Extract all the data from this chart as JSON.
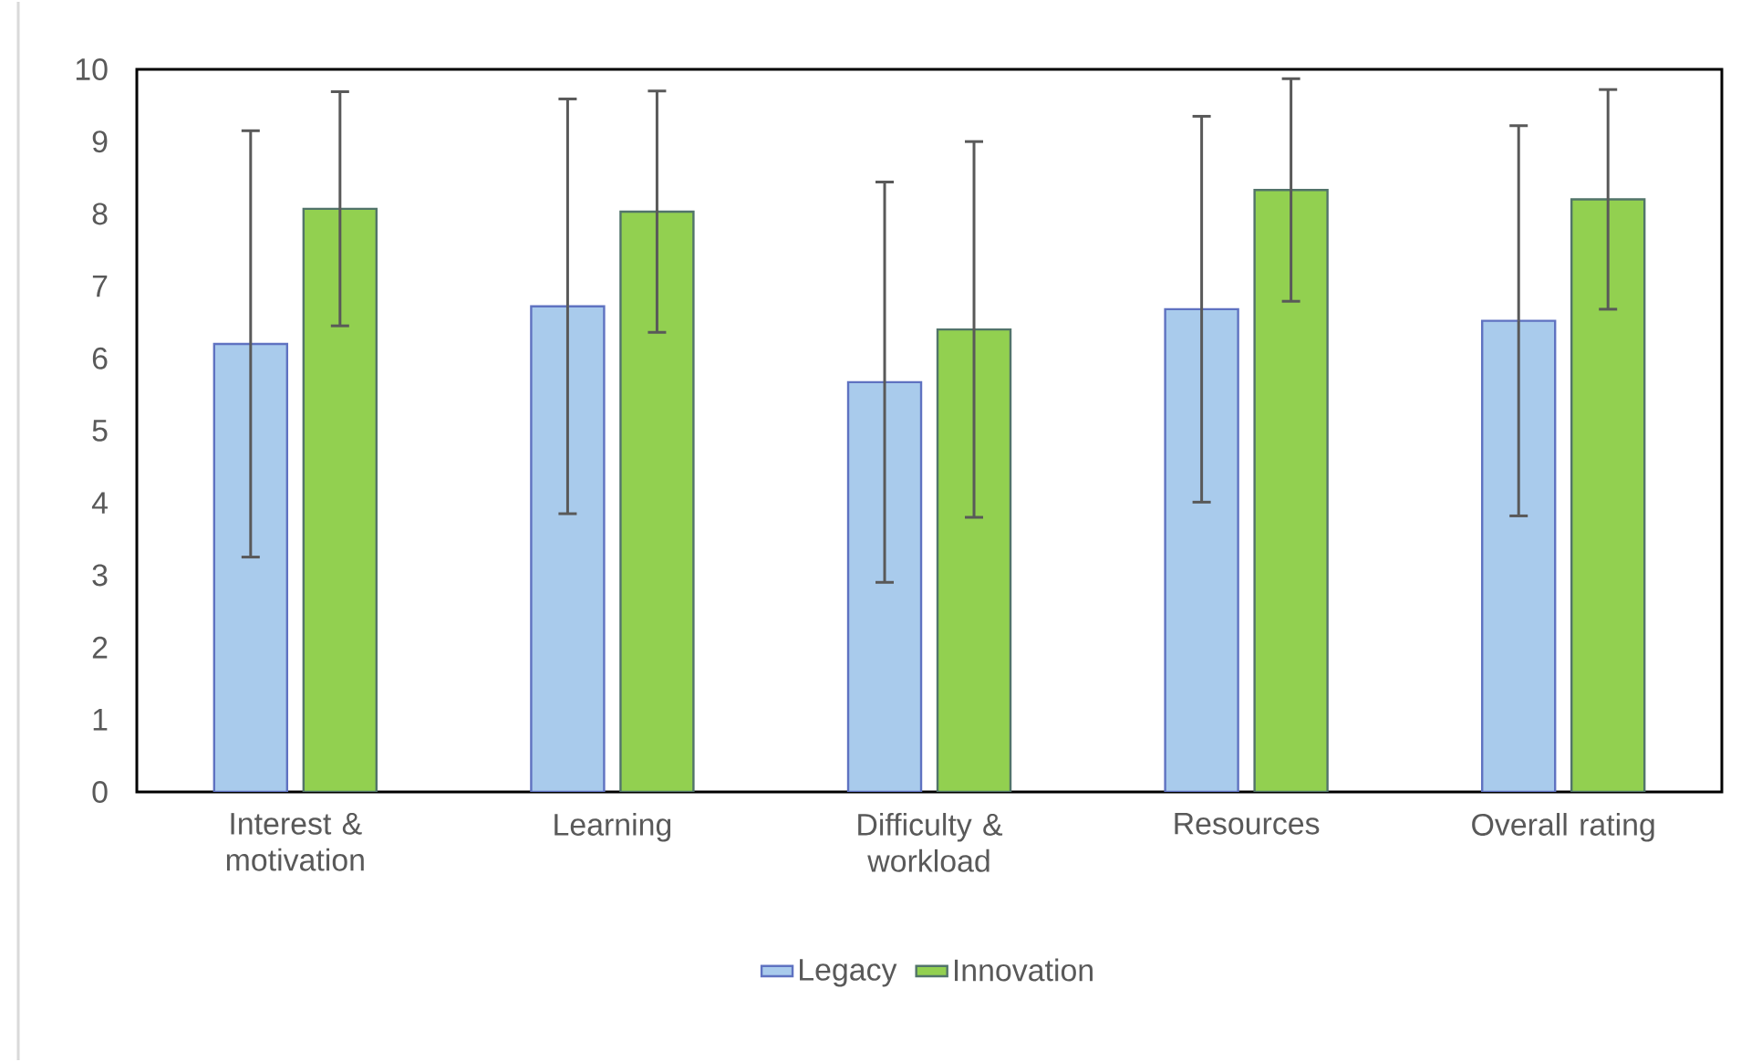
{
  "chart_data": {
    "type": "bar",
    "categories": [
      "Interest & motivation",
      "Learning",
      "Difficulty & workload",
      "Resources",
      "Overall rating"
    ],
    "series": [
      {
        "name": "Legacy",
        "color": "#a9cbec",
        "values": [
          6.2,
          6.72,
          5.67,
          6.68,
          6.52
        ],
        "errors": [
          2.95,
          2.87,
          2.77,
          2.67,
          2.7
        ]
      },
      {
        "name": "Innovation",
        "color": "#92d050",
        "values": [
          8.07,
          8.03,
          6.4,
          8.33,
          8.2
        ],
        "errors": [
          1.62,
          1.67,
          2.6,
          1.54,
          1.52
        ]
      }
    ],
    "ylim": [
      0,
      10
    ],
    "yticks": [
      0,
      1,
      2,
      3,
      4,
      5,
      6,
      7,
      8,
      9,
      10
    ],
    "grid": false,
    "legend": "bottom"
  }
}
